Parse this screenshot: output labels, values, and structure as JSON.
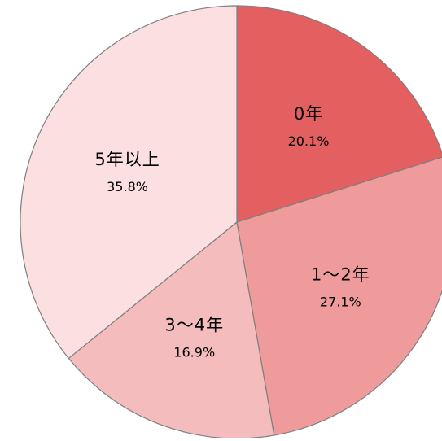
{
  "chart_data": {
    "type": "pie",
    "start_angle_deg": 0,
    "direction": "clockwise",
    "slices": [
      {
        "label": "0年",
        "value": 20.1,
        "display": "20.1%",
        "color": "#e45f60"
      },
      {
        "label": "1～2年",
        "value": 27.1,
        "display": "27.1%",
        "color": "#f09b9b"
      },
      {
        "label": "3～4年",
        "value": 16.9,
        "display": "16.9%",
        "color": "#f5bcbd"
      },
      {
        "label": "5年以上",
        "value": 35.8,
        "display": "35.8%",
        "color": "#fcdfe1"
      }
    ],
    "edge_color": "#7f7f7f"
  }
}
